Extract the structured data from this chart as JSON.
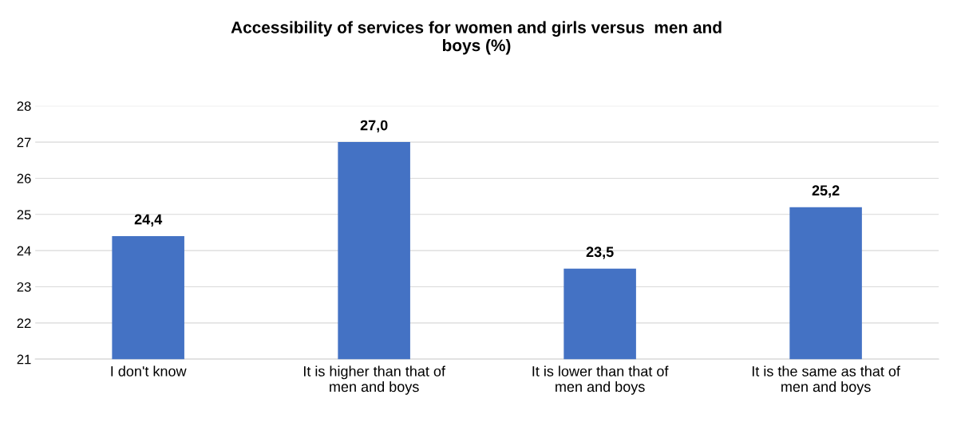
{
  "chart_data": {
    "type": "bar",
    "title": "Accessibility of services for women and girls versus  men and\nboys (%)",
    "categories": [
      "I don't know",
      "It is higher than that of\nmen and boys",
      "It is lower than that of\nmen and boys",
      "It is the same as that of\nmen and boys"
    ],
    "values": [
      24.4,
      27.0,
      23.5,
      25.2
    ],
    "value_labels": [
      "24,4",
      "27,0",
      "23,5",
      "25,2"
    ],
    "color": "#4472c4",
    "ylim": [
      21,
      28
    ],
    "yticks": [
      21,
      22,
      23,
      24,
      25,
      26,
      27,
      28
    ],
    "grid": "y",
    "legend": false
  }
}
